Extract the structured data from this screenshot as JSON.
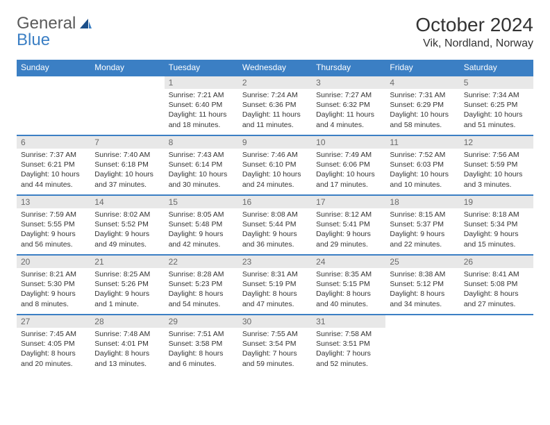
{
  "logo": {
    "part1": "General",
    "part2": "Blue"
  },
  "header": {
    "title": "October 2024",
    "location": "Vik, Nordland, Norway"
  },
  "colors": {
    "accent": "#3b7fc4",
    "dayhead_bg": "#3b7fc4",
    "dayhead_fg": "#ffffff",
    "daynum_bg": "#e8e8e8",
    "text": "#333333"
  },
  "dayheads": [
    "Sunday",
    "Monday",
    "Tuesday",
    "Wednesday",
    "Thursday",
    "Friday",
    "Saturday"
  ],
  "weeks": [
    [
      null,
      null,
      {
        "n": "1",
        "sr": "Sunrise: 7:21 AM",
        "ss": "Sunset: 6:40 PM",
        "d1": "Daylight: 11 hours",
        "d2": "and 18 minutes."
      },
      {
        "n": "2",
        "sr": "Sunrise: 7:24 AM",
        "ss": "Sunset: 6:36 PM",
        "d1": "Daylight: 11 hours",
        "d2": "and 11 minutes."
      },
      {
        "n": "3",
        "sr": "Sunrise: 7:27 AM",
        "ss": "Sunset: 6:32 PM",
        "d1": "Daylight: 11 hours",
        "d2": "and 4 minutes."
      },
      {
        "n": "4",
        "sr": "Sunrise: 7:31 AM",
        "ss": "Sunset: 6:29 PM",
        "d1": "Daylight: 10 hours",
        "d2": "and 58 minutes."
      },
      {
        "n": "5",
        "sr": "Sunrise: 7:34 AM",
        "ss": "Sunset: 6:25 PM",
        "d1": "Daylight: 10 hours",
        "d2": "and 51 minutes."
      }
    ],
    [
      {
        "n": "6",
        "sr": "Sunrise: 7:37 AM",
        "ss": "Sunset: 6:21 PM",
        "d1": "Daylight: 10 hours",
        "d2": "and 44 minutes."
      },
      {
        "n": "7",
        "sr": "Sunrise: 7:40 AM",
        "ss": "Sunset: 6:18 PM",
        "d1": "Daylight: 10 hours",
        "d2": "and 37 minutes."
      },
      {
        "n": "8",
        "sr": "Sunrise: 7:43 AM",
        "ss": "Sunset: 6:14 PM",
        "d1": "Daylight: 10 hours",
        "d2": "and 30 minutes."
      },
      {
        "n": "9",
        "sr": "Sunrise: 7:46 AM",
        "ss": "Sunset: 6:10 PM",
        "d1": "Daylight: 10 hours",
        "d2": "and 24 minutes."
      },
      {
        "n": "10",
        "sr": "Sunrise: 7:49 AM",
        "ss": "Sunset: 6:06 PM",
        "d1": "Daylight: 10 hours",
        "d2": "and 17 minutes."
      },
      {
        "n": "11",
        "sr": "Sunrise: 7:52 AM",
        "ss": "Sunset: 6:03 PM",
        "d1": "Daylight: 10 hours",
        "d2": "and 10 minutes."
      },
      {
        "n": "12",
        "sr": "Sunrise: 7:56 AM",
        "ss": "Sunset: 5:59 PM",
        "d1": "Daylight: 10 hours",
        "d2": "and 3 minutes."
      }
    ],
    [
      {
        "n": "13",
        "sr": "Sunrise: 7:59 AM",
        "ss": "Sunset: 5:55 PM",
        "d1": "Daylight: 9 hours",
        "d2": "and 56 minutes."
      },
      {
        "n": "14",
        "sr": "Sunrise: 8:02 AM",
        "ss": "Sunset: 5:52 PM",
        "d1": "Daylight: 9 hours",
        "d2": "and 49 minutes."
      },
      {
        "n": "15",
        "sr": "Sunrise: 8:05 AM",
        "ss": "Sunset: 5:48 PM",
        "d1": "Daylight: 9 hours",
        "d2": "and 42 minutes."
      },
      {
        "n": "16",
        "sr": "Sunrise: 8:08 AM",
        "ss": "Sunset: 5:44 PM",
        "d1": "Daylight: 9 hours",
        "d2": "and 36 minutes."
      },
      {
        "n": "17",
        "sr": "Sunrise: 8:12 AM",
        "ss": "Sunset: 5:41 PM",
        "d1": "Daylight: 9 hours",
        "d2": "and 29 minutes."
      },
      {
        "n": "18",
        "sr": "Sunrise: 8:15 AM",
        "ss": "Sunset: 5:37 PM",
        "d1": "Daylight: 9 hours",
        "d2": "and 22 minutes."
      },
      {
        "n": "19",
        "sr": "Sunrise: 8:18 AM",
        "ss": "Sunset: 5:34 PM",
        "d1": "Daylight: 9 hours",
        "d2": "and 15 minutes."
      }
    ],
    [
      {
        "n": "20",
        "sr": "Sunrise: 8:21 AM",
        "ss": "Sunset: 5:30 PM",
        "d1": "Daylight: 9 hours",
        "d2": "and 8 minutes."
      },
      {
        "n": "21",
        "sr": "Sunrise: 8:25 AM",
        "ss": "Sunset: 5:26 PM",
        "d1": "Daylight: 9 hours",
        "d2": "and 1 minute."
      },
      {
        "n": "22",
        "sr": "Sunrise: 8:28 AM",
        "ss": "Sunset: 5:23 PM",
        "d1": "Daylight: 8 hours",
        "d2": "and 54 minutes."
      },
      {
        "n": "23",
        "sr": "Sunrise: 8:31 AM",
        "ss": "Sunset: 5:19 PM",
        "d1": "Daylight: 8 hours",
        "d2": "and 47 minutes."
      },
      {
        "n": "24",
        "sr": "Sunrise: 8:35 AM",
        "ss": "Sunset: 5:15 PM",
        "d1": "Daylight: 8 hours",
        "d2": "and 40 minutes."
      },
      {
        "n": "25",
        "sr": "Sunrise: 8:38 AM",
        "ss": "Sunset: 5:12 PM",
        "d1": "Daylight: 8 hours",
        "d2": "and 34 minutes."
      },
      {
        "n": "26",
        "sr": "Sunrise: 8:41 AM",
        "ss": "Sunset: 5:08 PM",
        "d1": "Daylight: 8 hours",
        "d2": "and 27 minutes."
      }
    ],
    [
      {
        "n": "27",
        "sr": "Sunrise: 7:45 AM",
        "ss": "Sunset: 4:05 PM",
        "d1": "Daylight: 8 hours",
        "d2": "and 20 minutes."
      },
      {
        "n": "28",
        "sr": "Sunrise: 7:48 AM",
        "ss": "Sunset: 4:01 PM",
        "d1": "Daylight: 8 hours",
        "d2": "and 13 minutes."
      },
      {
        "n": "29",
        "sr": "Sunrise: 7:51 AM",
        "ss": "Sunset: 3:58 PM",
        "d1": "Daylight: 8 hours",
        "d2": "and 6 minutes."
      },
      {
        "n": "30",
        "sr": "Sunrise: 7:55 AM",
        "ss": "Sunset: 3:54 PM",
        "d1": "Daylight: 7 hours",
        "d2": "and 59 minutes."
      },
      {
        "n": "31",
        "sr": "Sunrise: 7:58 AM",
        "ss": "Sunset: 3:51 PM",
        "d1": "Daylight: 7 hours",
        "d2": "and 52 minutes."
      },
      null,
      null
    ]
  ]
}
